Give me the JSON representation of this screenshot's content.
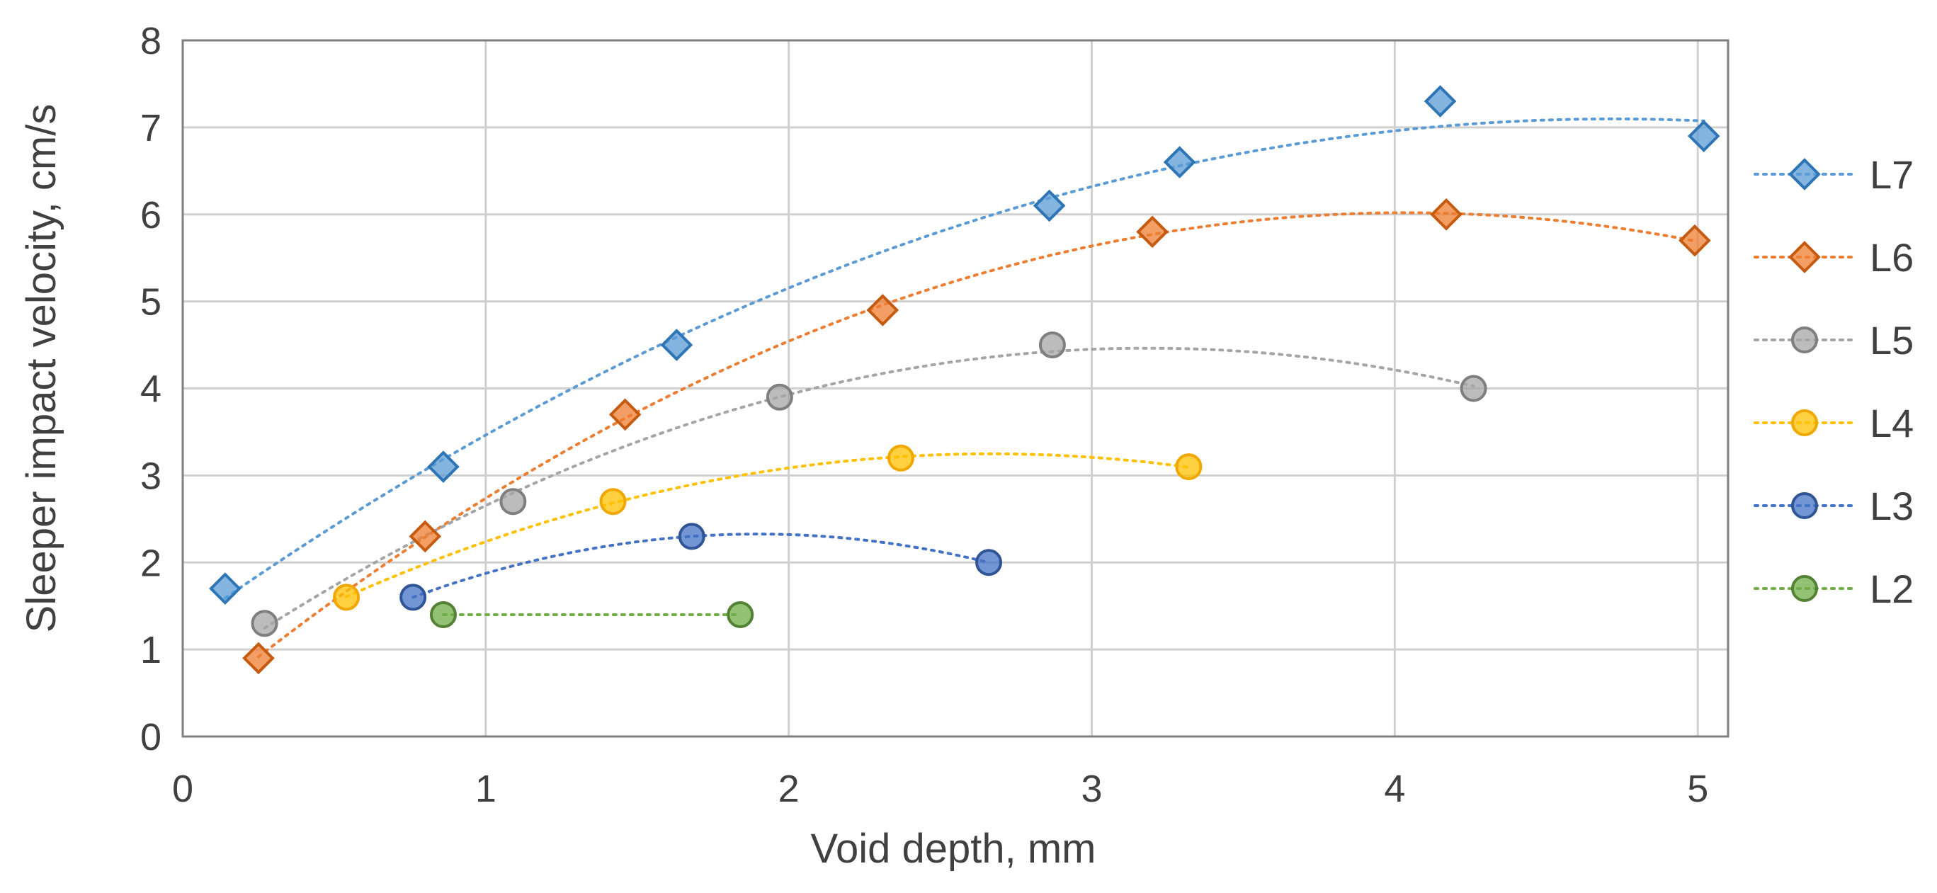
{
  "chart_data": {
    "type": "scatter",
    "title": "",
    "xlabel": "Void depth, mm",
    "ylabel": "Sleeper impact velocity, cm/s",
    "xlim": [
      0,
      5.1
    ],
    "ylim": [
      0,
      8
    ],
    "xticks": [
      0,
      1,
      2,
      3,
      4,
      5
    ],
    "yticks": [
      0,
      1,
      2,
      3,
      4,
      5,
      6,
      7,
      8
    ],
    "grid": true,
    "trendline": "dotted polynomial",
    "legend_position": "right",
    "series": [
      {
        "name": "L7",
        "marker": "diamond",
        "color": "#5B9BD5",
        "stroke": "#2E75B6",
        "x": [
          0.14,
          0.86,
          1.63,
          2.86,
          3.29,
          4.15,
          5.02
        ],
        "y": [
          1.7,
          3.1,
          4.5,
          6.1,
          6.6,
          7.3,
          6.9
        ]
      },
      {
        "name": "L6",
        "marker": "diamond",
        "color": "#ED7D31",
        "stroke": "#C55A11",
        "x": [
          0.25,
          0.8,
          1.46,
          2.31,
          3.2,
          4.17,
          4.99
        ],
        "y": [
          0.9,
          2.3,
          3.7,
          4.9,
          5.8,
          6.0,
          5.7
        ]
      },
      {
        "name": "L5",
        "marker": "circle",
        "color": "#A5A5A5",
        "stroke": "#7F7F7F",
        "x": [
          0.27,
          1.09,
          1.97,
          2.87,
          4.26
        ],
        "y": [
          1.3,
          2.7,
          3.9,
          4.5,
          4.0
        ]
      },
      {
        "name": "L4",
        "marker": "circle",
        "color": "#FFC000",
        "stroke": "#F0A800",
        "x": [
          0.54,
          1.42,
          2.37,
          3.32
        ],
        "y": [
          1.6,
          2.7,
          3.2,
          3.1
        ]
      },
      {
        "name": "L3",
        "marker": "circle",
        "color": "#4472C4",
        "stroke": "#2F5597",
        "x": [
          0.76,
          1.68,
          2.66
        ],
        "y": [
          1.6,
          2.3,
          2.0
        ]
      },
      {
        "name": "L2",
        "marker": "circle",
        "color": "#70AD47",
        "stroke": "#548235",
        "x": [
          0.86,
          1.84
        ],
        "y": [
          1.4,
          1.4
        ]
      }
    ]
  }
}
